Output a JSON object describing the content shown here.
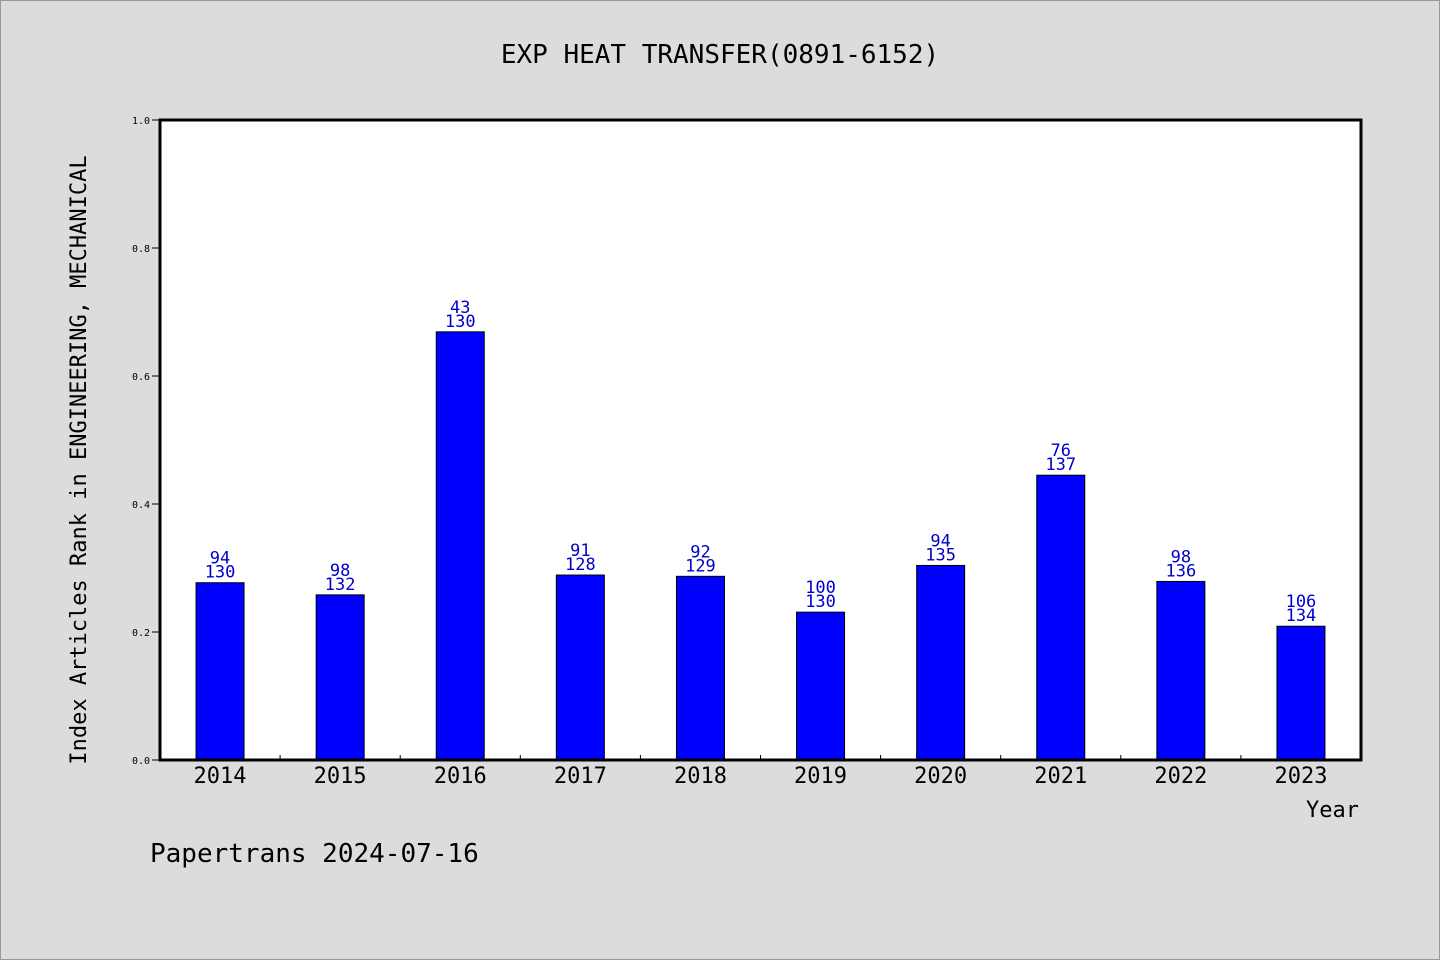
{
  "chart_data": {
    "type": "bar",
    "title": "EXP HEAT TRANSFER(0891-6152)",
    "xlabel": "Year",
    "ylabel": "Index Articles Rank in ENGINEERING, MECHANICAL",
    "footer": "Papertrans 2024-07-16",
    "ylim": [
      0,
      1.0
    ],
    "yticks": [
      "0.0",
      "0.2",
      "0.4",
      "0.6",
      "0.8",
      "1.0"
    ],
    "grid": false,
    "bar_color": "#0000ff",
    "label_color": "#0000cc",
    "categories": [
      "2014",
      "2015",
      "2016",
      "2017",
      "2018",
      "2019",
      "2020",
      "2021",
      "2022",
      "2023"
    ],
    "values": [
      0.277,
      0.258,
      0.669,
      0.289,
      0.287,
      0.231,
      0.304,
      0.445,
      0.279,
      0.209
    ],
    "rank_labels": [
      "94",
      "98",
      "43",
      "91",
      "92",
      "100",
      "94",
      "76",
      "98",
      "106"
    ],
    "total_labels": [
      "130",
      "132",
      "130",
      "128",
      "129",
      "130",
      "135",
      "137",
      "136",
      "134"
    ]
  }
}
